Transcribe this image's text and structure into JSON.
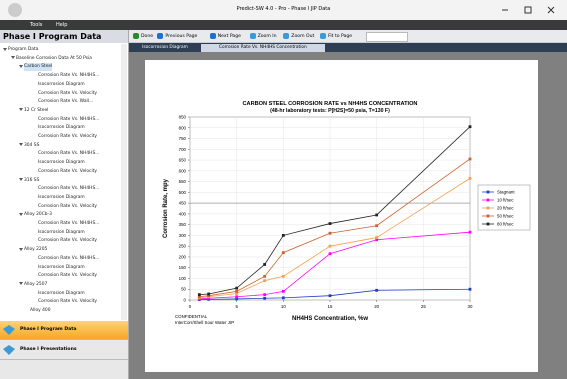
{
  "window": {
    "title": "Predict-SW 4.0 - Pro - Phase I JIP Data",
    "menu": [
      "Tools",
      "Help"
    ]
  },
  "sidebar": {
    "title": "Phase I Program Data",
    "tree": [
      {
        "label": "Program Data",
        "children": [
          {
            "label": "Baseline Corrosion Data At 50 Psia",
            "children": [
              {
                "label": "Carbon Steel",
                "children": [
                  {
                    "label": "Corrosion Rate Vs. NH4HS..."
                  },
                  {
                    "label": "Isocorrosion Diagram"
                  },
                  {
                    "label": "Corrosion Rate Vs. Velocity"
                  },
                  {
                    "label": "Corrosion Rate Vs. Wall..."
                  }
                ]
              },
              {
                "label": "12 Cr Steel",
                "children": [
                  {
                    "label": "Corrosion Rate Vs. NH4HS..."
                  },
                  {
                    "label": "Isocorrosion Diagram"
                  },
                  {
                    "label": "Corrosion Rate Vs. Velocity"
                  }
                ]
              },
              {
                "label": "304 SS",
                "children": [
                  {
                    "label": "Corrosion Rate Vs. NH4HS..."
                  },
                  {
                    "label": "Isocorrosion Diagram"
                  },
                  {
                    "label": "Corrosion Rate Vs. Velocity"
                  }
                ]
              },
              {
                "label": "316 SS",
                "children": [
                  {
                    "label": "Corrosion Rate Vs. NH4HS..."
                  },
                  {
                    "label": "Isocorrosion Diagram"
                  },
                  {
                    "label": "Corrosion Rate Vs. Velocity"
                  }
                ]
              },
              {
                "label": "Alloy 20Cb-3",
                "children": [
                  {
                    "label": "Corrosion Rate Vs. NH4HS..."
                  },
                  {
                    "label": "Isocorrosion Diagram"
                  },
                  {
                    "label": "Corrosion Rate Vs. Velocity"
                  }
                ]
              },
              {
                "label": "Alloy 2205",
                "children": [
                  {
                    "label": "Corrosion Rate Vs. NH4HS..."
                  },
                  {
                    "label": "Isocorrosion Diagram"
                  },
                  {
                    "label": "Corrosion Rate Vs. Velocity"
                  }
                ]
              },
              {
                "label": "Alloy 2507",
                "children": [
                  {
                    "label": "Isocorrosion Diagram"
                  },
                  {
                    "label": "Corrosion Rate Vs. Velocity"
                  }
                ]
              },
              {
                "label": "Alloy 400"
              }
            ]
          }
        ]
      }
    ],
    "panels": [
      "Phase I Program Data",
      "Phase I Presentations"
    ]
  },
  "toolbar": [
    "Done",
    "Previous Page",
    "Next Page",
    "Zoom In",
    "Zoom Out",
    "Fit to Page"
  ],
  "tabs": [
    "Isocorrosion Diagram",
    "Corrosion Rate Vs. NH4HS Concentration"
  ],
  "chart_data": {
    "type": "line",
    "title": "CARBON STEEL CORROSION RATE vs NH4HS CONCENTRATION",
    "subtitle": "(48-hr laboratory tests: P[H2S]=50 psia, T=130 F)",
    "x_label": "NH4HS Concentration, %w",
    "y_label": "Corrosion Rate, mpy",
    "x": [
      1,
      2,
      5,
      8,
      10,
      15,
      20,
      30
    ],
    "series": [
      {
        "name": "Stagnant",
        "color": "#1f3fbf",
        "values": [
          2,
          3,
          5,
          8,
          10,
          20,
          45,
          50
        ]
      },
      {
        "name": "10 ft/sec",
        "color": "#ff00ff",
        "values": [
          5,
          8,
          15,
          25,
          40,
          215,
          280,
          315
        ]
      },
      {
        "name": "20 ft/sec",
        "color": "#f5a050",
        "values": [
          10,
          15,
          30,
          90,
          110,
          250,
          290,
          565
        ]
      },
      {
        "name": "50 ft/sec",
        "color": "#d0602a",
        "values": [
          15,
          20,
          40,
          110,
          220,
          310,
          345,
          655
        ]
      },
      {
        "name": "80 ft/sec",
        "color": "#222222",
        "values": [
          25,
          28,
          55,
          165,
          300,
          355,
          395,
          805
        ]
      }
    ],
    "reference_line": 450,
    "xlim": [
      0,
      30
    ],
    "xticks": [
      0,
      5,
      10,
      15,
      20,
      25,
      30
    ],
    "ylim": [
      0,
      850
    ],
    "yticks": [
      0,
      50,
      100,
      150,
      200,
      250,
      300,
      350,
      400,
      450,
      500,
      550,
      600,
      650,
      700,
      750,
      800,
      850
    ],
    "notes": [
      "CONFIDENTIAL",
      "InterCorr/Shell Sour Water JIP"
    ]
  }
}
